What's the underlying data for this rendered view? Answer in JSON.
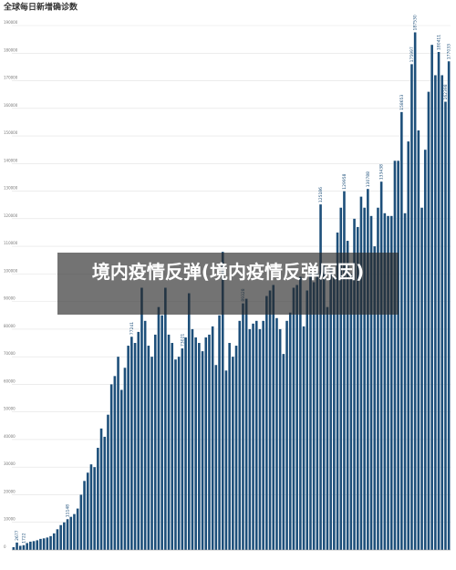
{
  "chart_data": {
    "type": "bar",
    "title": "全球每日新增确诊数",
    "color": "#1d4f7a",
    "grid": true,
    "ylim": [
      0,
      190000
    ],
    "yticks": [
      0,
      10000,
      20000,
      30000,
      40000,
      50000,
      60000,
      70000,
      80000,
      90000,
      100000,
      110000,
      120000,
      130000,
      140000,
      150000,
      160000,
      170000,
      180000,
      190000
    ],
    "values": [
      1000,
      2677,
      1500,
      1722,
      2500,
      3000,
      3200,
      3500,
      4000,
      4200,
      4500,
      5000,
      6000,
      7500,
      9000,
      10000,
      11148,
      12000,
      13000,
      15000,
      20000,
      25000,
      28000,
      31000,
      30000,
      37000,
      44000,
      41000,
      49000,
      60000,
      63000,
      70000,
      58000,
      66000,
      74000,
      77241,
      75000,
      79000,
      95000,
      83000,
      74000,
      70000,
      78000,
      88000,
      85000,
      95000,
      78000,
      75000,
      69000,
      70000,
      73021,
      77000,
      93000,
      80000,
      77000,
      75000,
      72000,
      77000,
      78000,
      81000,
      67000,
      85000,
      108000,
      65000,
      75000,
      70000,
      74000,
      83000,
      89328,
      91000,
      80000,
      82000,
      83000,
      80000,
      83000,
      92000,
      94000,
      96000,
      84000,
      80000,
      71000,
      83000,
      86000,
      95000,
      96000,
      99000,
      81000,
      94000,
      100000,
      97000,
      101000,
      125186,
      103000,
      88000,
      102000,
      99000,
      115000,
      124000,
      129958,
      112000,
      100000,
      120000,
      117000,
      128000,
      124000,
      130788,
      121000,
      110000,
      124000,
      133438,
      122000,
      121000,
      121000,
      141000,
      141000,
      158653,
      122000,
      148000,
      175997,
      187530,
      152000,
      124000,
      145000,
      166000,
      183000,
      172000,
      180411,
      172000,
      162398,
      177033
    ],
    "value_labels": [
      null,
      "2677",
      null,
      "1722",
      null,
      null,
      null,
      null,
      null,
      null,
      null,
      null,
      null,
      null,
      null,
      null,
      "11148",
      null,
      null,
      null,
      null,
      null,
      null,
      null,
      null,
      null,
      null,
      null,
      null,
      null,
      null,
      null,
      null,
      null,
      null,
      "77241",
      null,
      null,
      null,
      null,
      null,
      null,
      null,
      null,
      null,
      null,
      null,
      null,
      null,
      null,
      "73021",
      null,
      null,
      null,
      null,
      null,
      null,
      null,
      null,
      null,
      null,
      null,
      null,
      null,
      null,
      null,
      null,
      null,
      "89328",
      null,
      null,
      null,
      null,
      null,
      null,
      null,
      null,
      null,
      null,
      null,
      null,
      null,
      null,
      null,
      null,
      null,
      null,
      null,
      null,
      null,
      null,
      "125186",
      null,
      null,
      null,
      null,
      null,
      null,
      "129958",
      null,
      null,
      null,
      null,
      null,
      null,
      "130788",
      null,
      null,
      null,
      "133438",
      null,
      null,
      null,
      null,
      null,
      "158653",
      null,
      null,
      "175997",
      "187530",
      null,
      null,
      null,
      null,
      null,
      null,
      "180411",
      null,
      "162398",
      "177033"
    ]
  },
  "overlay": {
    "text": "境内疫情反弹(境内疫情反弹原因)"
  }
}
